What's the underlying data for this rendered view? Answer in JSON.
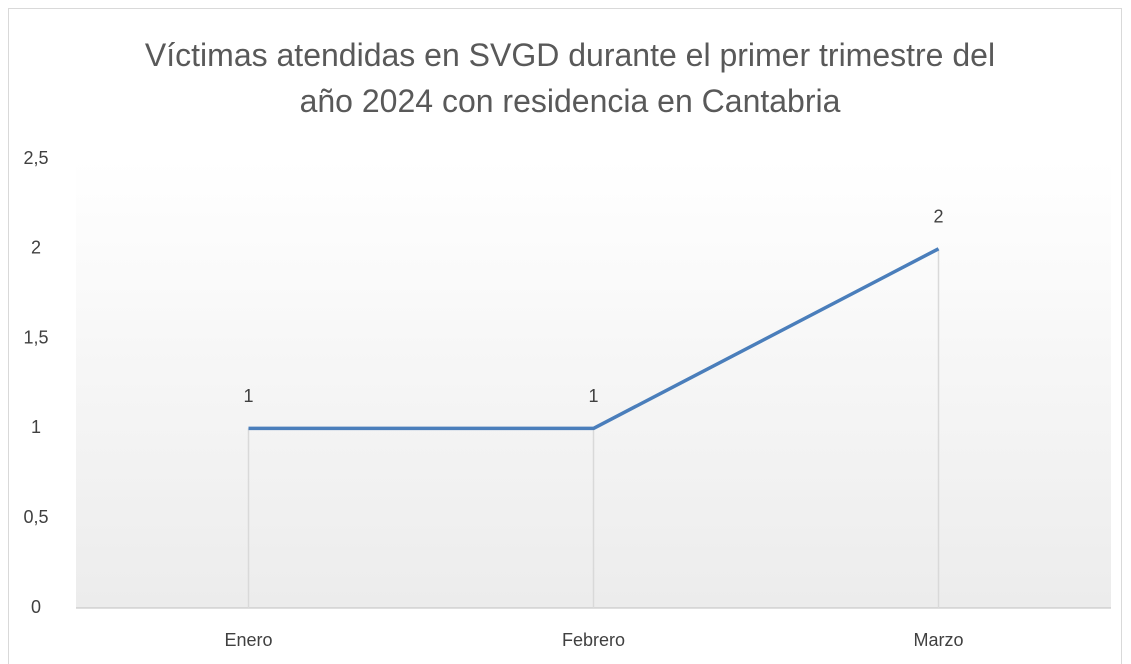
{
  "chart_data": {
    "type": "line",
    "title": "Víctimas atendidas en SVGD durante el primer trimestre del año 2024 con residencia en Cantabria",
    "categories": [
      "Enero",
      "Febrero",
      "Marzo"
    ],
    "series": [
      {
        "name": "Víctimas",
        "color": "#4a7ebb",
        "values": [
          1,
          1,
          2
        ]
      }
    ],
    "ylim": [
      0,
      2.5
    ],
    "yticks": [
      0,
      {
        "value": 0.5,
        "label": "0,5"
      },
      1,
      {
        "value": 1.5,
        "label": "1,5"
      },
      2,
      {
        "value": 2.5,
        "label": "2,5"
      }
    ],
    "drop_lines": true,
    "data_labels": true,
    "legend": false
  }
}
